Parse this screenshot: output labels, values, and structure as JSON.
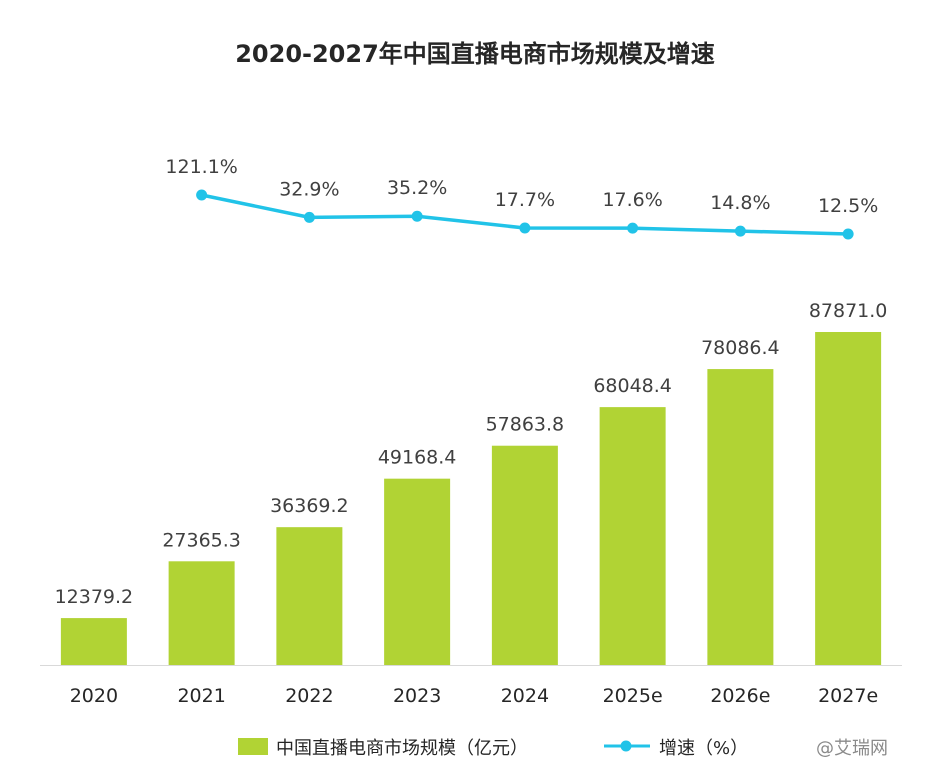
{
  "chart_data": {
    "type": "bar",
    "title": "2020-2027年中国直播电商市场规模及增速",
    "categories": [
      "2020",
      "2021",
      "2022",
      "2023",
      "2024",
      "2025e",
      "2026e",
      "2027e"
    ],
    "series": [
      {
        "name": "中国直播电商市场规模（亿元）",
        "type": "bar",
        "color": "#b1d334",
        "values": [
          12379.2,
          27365.3,
          36369.2,
          49168.4,
          57863.8,
          68048.4,
          78086.4,
          87871.0
        ],
        "labels": [
          "12379.2",
          "27365.3",
          "36369.2",
          "49168.4",
          "57863.8",
          "68048.4",
          "78086.4",
          "87871.0"
        ]
      },
      {
        "name": "增速（%）",
        "type": "line",
        "color": "#21c3e8",
        "values": [
          null,
          121.1,
          32.9,
          35.2,
          17.7,
          17.6,
          14.8,
          12.5
        ],
        "labels": [
          "",
          "121.1%",
          "32.9%",
          "35.2%",
          "17.7%",
          "17.6%",
          "14.8%",
          "12.5%"
        ]
      }
    ],
    "legend": "bottom",
    "grid": false
  },
  "watermark": "@艾瑞网"
}
